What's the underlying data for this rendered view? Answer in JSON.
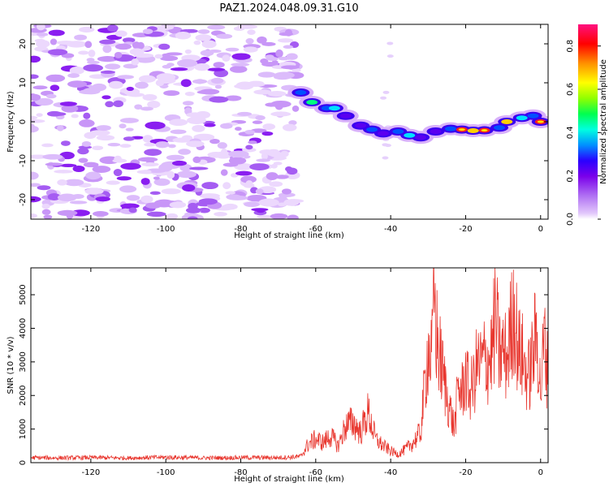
{
  "title": "PAZ1.2024.048.09.31.G10",
  "chart_data": [
    {
      "type": "heatmap",
      "xlabel": "Height of straight line (km)",
      "ylabel": "Frequency (Hz)",
      "xlim": [
        -136,
        2
      ],
      "ylim": [
        -25,
        25
      ],
      "x_ticks": [
        -120,
        -100,
        -80,
        -60,
        -40,
        -20,
        0
      ],
      "y_ticks": [
        -20,
        -10,
        0,
        10,
        20
      ],
      "colorbar": {
        "label": "Normalized spectral amplitude",
        "range": [
          0,
          0.9
        ],
        "ticks": [
          0.0,
          0.2,
          0.4,
          0.6,
          0.8
        ],
        "colormap": [
          "#ffffff",
          "#d8a8f8",
          "#8800e8",
          "#2200ff",
          "#00a0ff",
          "#00ffd0",
          "#00ff40",
          "#a0ff00",
          "#ffff00",
          "#ffa000",
          "#ff0000",
          "#ff0080"
        ]
      },
      "signal_track": {
        "description_free": true,
        "points": [
          {
            "x": -64,
            "f": 7.5,
            "a": 0.35
          },
          {
            "x": -61,
            "f": 5.0,
            "a": 0.55
          },
          {
            "x": -57,
            "f": 3.5,
            "a": 0.4
          },
          {
            "x": -55,
            "f": 3.5,
            "a": 0.5
          },
          {
            "x": -52,
            "f": 1.5,
            "a": 0.3
          },
          {
            "x": -48,
            "f": -1.0,
            "a": 0.3
          },
          {
            "x": -45,
            "f": -2.0,
            "a": 0.35
          },
          {
            "x": -42,
            "f": -3.0,
            "a": 0.3
          },
          {
            "x": -38,
            "f": -2.5,
            "a": 0.4
          },
          {
            "x": -35,
            "f": -3.5,
            "a": 0.45
          },
          {
            "x": -32,
            "f": -4.0,
            "a": 0.3
          },
          {
            "x": -28,
            "f": -2.5,
            "a": 0.25
          },
          {
            "x": -24,
            "f": -1.8,
            "a": 0.35
          },
          {
            "x": -21,
            "f": -2.0,
            "a": 0.85
          },
          {
            "x": -18,
            "f": -2.3,
            "a": 0.8
          },
          {
            "x": -15,
            "f": -2.2,
            "a": 0.85
          },
          {
            "x": -11,
            "f": -1.5,
            "a": 0.4
          },
          {
            "x": -9,
            "f": 0.0,
            "a": 0.8
          },
          {
            "x": -5,
            "f": 1.0,
            "a": 0.45
          },
          {
            "x": -2,
            "f": 1.5,
            "a": 0.4
          },
          {
            "x": 0,
            "f": 0.0,
            "a": 0.85
          }
        ]
      }
    },
    {
      "type": "line",
      "xlabel": "Height of straight line (km)",
      "ylabel": "SNR (10 * v/v)",
      "xlim": [
        -136,
        2
      ],
      "ylim": [
        0,
        5800
      ],
      "x_ticks": [
        -120,
        -100,
        -80,
        -60,
        -40,
        -20,
        0
      ],
      "y_ticks": [
        0,
        1000,
        2000,
        3000,
        4000,
        5000
      ],
      "color": "#e8362e",
      "series": [
        {
          "x": [
            -136,
            -130,
            -120,
            -110,
            -100,
            -90,
            -80,
            -70,
            -64,
            -62,
            -60,
            -58,
            -56,
            -54,
            -52,
            -50,
            -48,
            -46,
            -44,
            -42,
            -40,
            -38,
            -36,
            -34,
            -32,
            -31,
            -30,
            -29,
            -28.5,
            -28,
            -27,
            -26,
            -25,
            -24,
            -23,
            -22,
            -21,
            -20,
            -19,
            -18,
            -17,
            -16,
            -15,
            -14,
            -13,
            -12,
            -11,
            -10,
            -9,
            -8,
            -7,
            -6,
            -5,
            -4,
            -3,
            -2,
            -1,
            0,
            1,
            2
          ],
          "y": [
            150,
            140,
            150,
            140,
            160,
            140,
            150,
            150,
            180,
            550,
            700,
            600,
            800,
            500,
            1100,
            1200,
            900,
            1500,
            700,
            500,
            350,
            250,
            400,
            600,
            900,
            2200,
            3400,
            3000,
            5700,
            4000,
            3200,
            2600,
            2000,
            1500,
            1000,
            2200,
            2100,
            2600,
            2100,
            2300,
            2900,
            2900,
            3100,
            3000,
            3300,
            4400,
            3200,
            3300,
            3100,
            3900,
            4700,
            3300,
            3200,
            2700,
            2600,
            3300,
            3900,
            2100,
            3700,
            2500
          ]
        }
      ]
    }
  ]
}
